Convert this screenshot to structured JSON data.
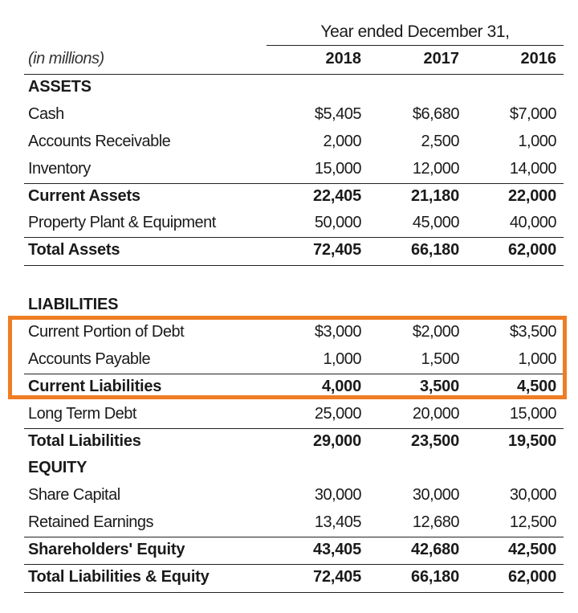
{
  "header": {
    "period_label": "Year ended December 31,",
    "units_label": "(in millions)",
    "years": [
      "2018",
      "2017",
      "2016"
    ]
  },
  "assets": {
    "section_title": "ASSETS",
    "rows": [
      {
        "label": "Cash",
        "values": [
          "$5,405",
          "$6,680",
          "$7,000"
        ]
      },
      {
        "label": "Accounts Receivable",
        "values": [
          "2,000",
          "2,500",
          "1,000"
        ]
      },
      {
        "label": "Inventory",
        "values": [
          "15,000",
          "12,000",
          "14,000"
        ]
      },
      {
        "label": "Current Assets",
        "values": [
          "22,405",
          "21,180",
          "22,000"
        ]
      },
      {
        "label": "Property Plant & Equipment",
        "values": [
          "50,000",
          "45,000",
          "40,000"
        ]
      },
      {
        "label": "Total Assets",
        "values": [
          "72,405",
          "66,180",
          "62,000"
        ]
      }
    ]
  },
  "liabilities": {
    "section_title": "LIABILITIES",
    "rows": [
      {
        "label": "Current Portion of Debt",
        "values": [
          "$3,000",
          "$2,000",
          "$3,500"
        ]
      },
      {
        "label": "Accounts Payable",
        "values": [
          "1,000",
          "1,500",
          "1,000"
        ]
      },
      {
        "label": "Current Liabilities",
        "values": [
          "4,000",
          "3,500",
          "4,500"
        ]
      },
      {
        "label": "Long Term Debt",
        "values": [
          "25,000",
          "20,000",
          "15,000"
        ]
      },
      {
        "label": "Total Liabilities",
        "values": [
          "29,000",
          "23,500",
          "19,500"
        ]
      }
    ]
  },
  "equity": {
    "section_title": "EQUITY",
    "rows": [
      {
        "label": "Share Capital",
        "values": [
          "30,000",
          "30,000",
          "30,000"
        ]
      },
      {
        "label": "Retained Earnings",
        "values": [
          "13,405",
          "12,680",
          "12,500"
        ]
      },
      {
        "label": "Shareholders' Equity",
        "values": [
          "43,405",
          "42,680",
          "42,500"
        ]
      },
      {
        "label": "Total Liabilities & Equity",
        "values": [
          "72,405",
          "66,180",
          "62,000"
        ]
      }
    ]
  },
  "highlight": {
    "color": "#ef7d24",
    "rows": [
      "Current Portion of Debt",
      "Accounts Payable",
      "Current Liabilities"
    ]
  }
}
